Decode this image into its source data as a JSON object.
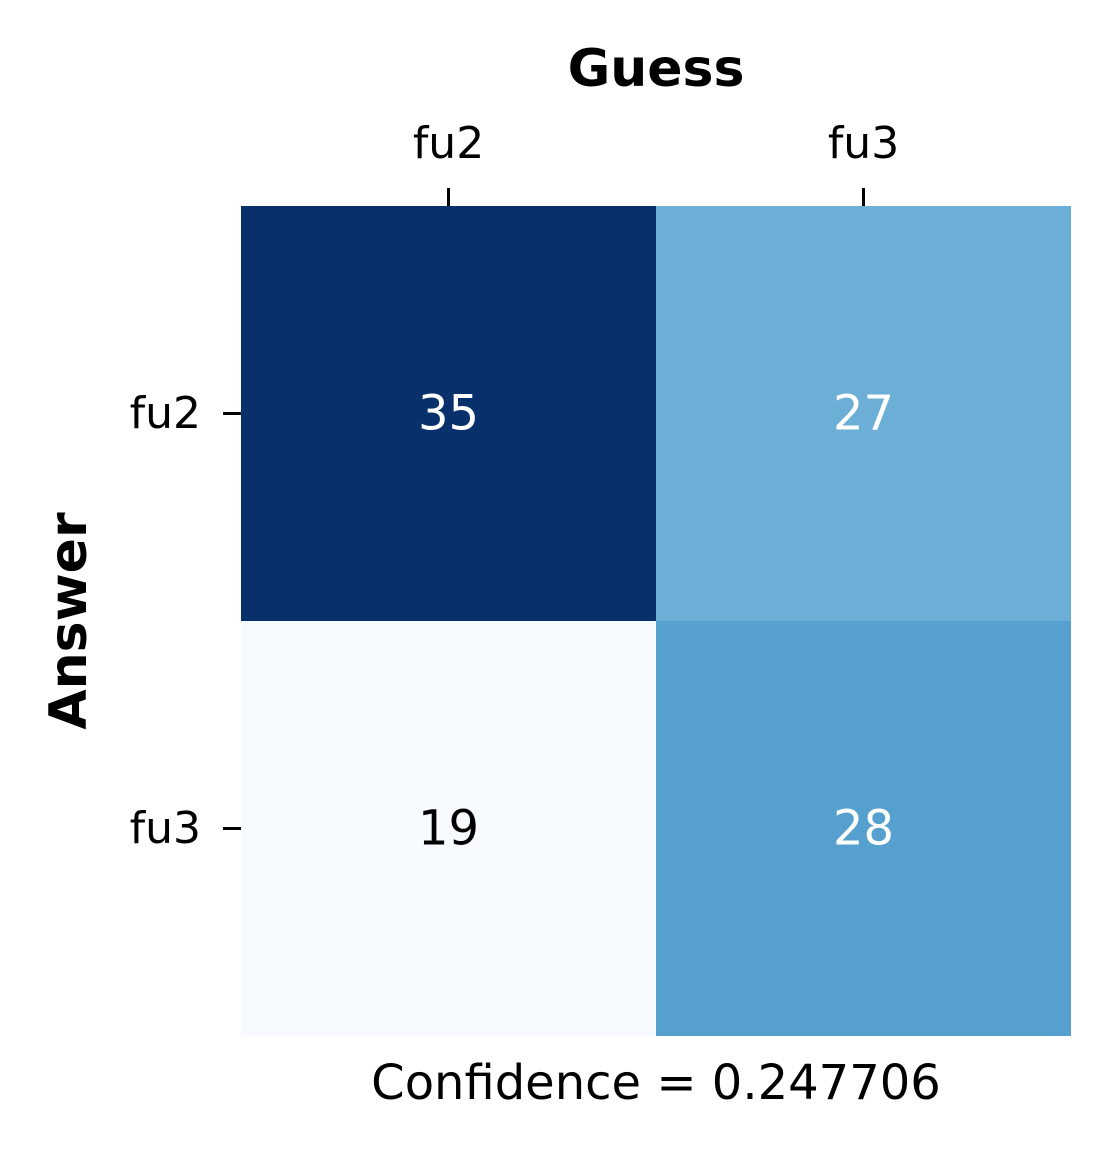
{
  "chart_data": {
    "type": "heatmap",
    "title": "Guess",
    "xlabel": "Guess",
    "ylabel": "Answer",
    "x_categories": [
      "fu2",
      "fu3"
    ],
    "y_categories": [
      "fu2",
      "fu3"
    ],
    "values": [
      [
        35,
        27
      ],
      [
        19,
        28
      ]
    ],
    "footer": "Confidence = 0.247706",
    "colormap": "Blues",
    "color_range": [
      19,
      35
    ],
    "colors": {
      "cells": [
        [
          "#08306b",
          "#6baed6"
        ],
        [
          "#f7fbff",
          "#56a0cf"
        ]
      ],
      "dark_text": "#000000",
      "light_text": "#ffffff"
    },
    "x_axis_position": "top",
    "colorbar": false
  }
}
